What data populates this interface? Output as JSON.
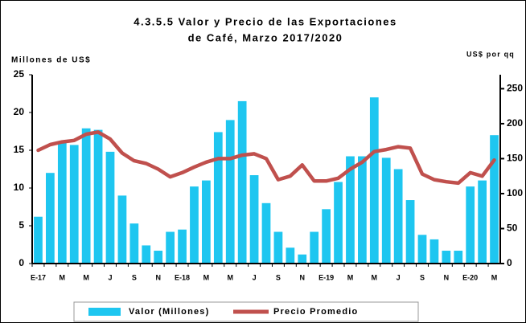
{
  "chart_data": {
    "type": "bar_line",
    "title": [
      "4.3.5.5 Valor y Precio de las Exportaciones",
      "de Café, Marzo 2017/2020"
    ],
    "y_label": "Millones de US$",
    "y2_label": "US$ por qq",
    "categories": [
      "E-17",
      null,
      "M",
      null,
      "M",
      null,
      "J",
      null,
      "S",
      null,
      "N",
      null,
      "E-18",
      null,
      "M",
      null,
      "M",
      null,
      "J",
      null,
      "S",
      null,
      "N",
      null,
      "E-19",
      null,
      "M",
      null,
      "M",
      null,
      "J",
      null,
      "S",
      null,
      "N",
      null,
      "E-20",
      null,
      "M"
    ],
    "series": [
      {
        "name": "Valor (Millones)",
        "type": "bar",
        "color": "#1ec6f0",
        "values": [
          6.2,
          12,
          16,
          15.7,
          17.9,
          17.7,
          14.8,
          9,
          5.3,
          2.4,
          1.7,
          4.2,
          4.5,
          10.2,
          11,
          17.4,
          19,
          21.5,
          11.7,
          8,
          4.2,
          2.1,
          1.2,
          4.2,
          7.2,
          10.8,
          14.2,
          14.2,
          22,
          14,
          12.5,
          8.4,
          3.8,
          3.2,
          1.7,
          1.7,
          10.2,
          11,
          17
        ]
      },
      {
        "name": "Precio Promedio",
        "type": "line",
        "axis": "y2",
        "color": "#c0504d",
        "values": [
          162,
          170,
          174,
          176,
          185,
          188,
          178,
          158,
          147,
          143,
          135,
          124,
          130,
          138,
          145,
          150,
          150,
          155,
          157,
          150,
          120,
          125,
          141,
          118,
          118,
          122,
          135,
          145,
          160,
          163,
          167,
          165,
          128,
          120,
          117,
          115,
          130,
          125,
          148
        ]
      }
    ],
    "ylim": [
      0,
      25
    ],
    "yticks": [
      0,
      5,
      10,
      15,
      20,
      25
    ],
    "y2lim": [
      0,
      270
    ],
    "y2ticks": [
      0,
      50,
      100,
      150,
      200,
      250
    ],
    "grid": false
  }
}
